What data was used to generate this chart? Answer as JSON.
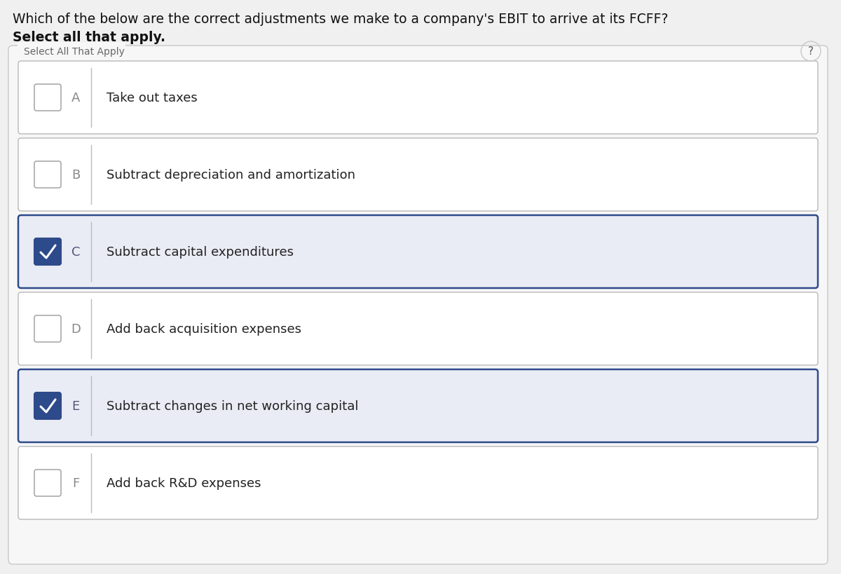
{
  "title_line1": "Which of the below are the correct adjustments we make to a company's EBIT to arrive at its FCFF?",
  "title_line2": "Select all that apply.",
  "section_label": "Select All That Apply",
  "question_mark": "?",
  "options": [
    {
      "letter": "A",
      "text": "Take out taxes",
      "checked": false
    },
    {
      "letter": "B",
      "text": "Subtract depreciation and amortization",
      "checked": false
    },
    {
      "letter": "C",
      "text": "Subtract capital expenditures",
      "checked": true
    },
    {
      "letter": "D",
      "text": "Add back acquisition expenses",
      "checked": false
    },
    {
      "letter": "E",
      "text": "Subtract changes in net working capital",
      "checked": true
    },
    {
      "letter": "F",
      "text": "Add back R&D expenses",
      "checked": false
    }
  ],
  "bg_color": "#f0f0f0",
  "outer_box_color": "#c8c8c8",
  "outer_box_fill": "#f7f7f7",
  "section_label_color": "#666666",
  "unchecked_row_fill": "#ffffff",
  "unchecked_row_border": "#b8b8b8",
  "checked_row_fill": "#eaecf5",
  "checked_row_border": "#2d4a8a",
  "checkbox_unchecked_border": "#aaaaaa",
  "checkbox_checked_fill": "#2d4a8a",
  "checkbox_checked_border": "#2d4a8a",
  "letter_color_unchecked": "#888888",
  "letter_color_checked": "#555577",
  "text_color": "#222222",
  "divider_color": "#bbbbbb",
  "title_fontsize": 13.5,
  "title_bold_fontsize": 13.5,
  "label_fontsize": 10,
  "option_fontsize": 13,
  "letter_fontsize": 13
}
